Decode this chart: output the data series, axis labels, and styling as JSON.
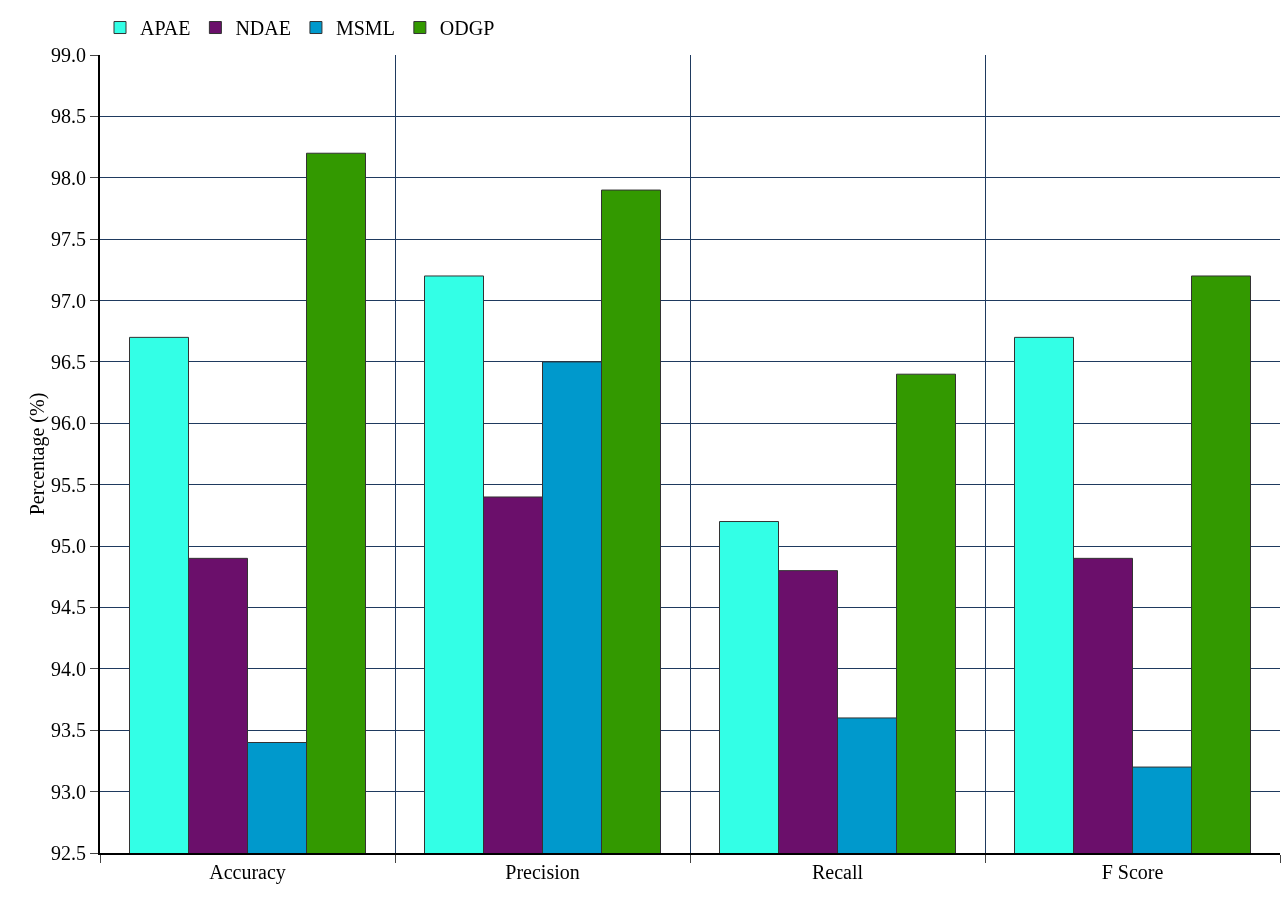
{
  "chart_data": {
    "type": "bar",
    "ylabel": "Percentage (%)",
    "categories": [
      "Accuracy",
      "Precision",
      "Recall",
      "F Score"
    ],
    "series": [
      {
        "name": "APAE",
        "color": "#33ffe6",
        "values": [
          96.7,
          97.2,
          95.2,
          96.7
        ]
      },
      {
        "name": "NDAE",
        "color": "#6b0f6b",
        "values": [
          94.9,
          95.4,
          94.8,
          94.9
        ]
      },
      {
        "name": "MSML",
        "color": "#0099cc",
        "values": [
          93.4,
          96.5,
          93.6,
          93.2
        ]
      },
      {
        "name": "ODGP",
        "color": "#339900",
        "values": [
          98.2,
          97.9,
          96.4,
          97.2
        ]
      }
    ],
    "ylim": [
      92.5,
      99.0
    ],
    "yticks": [
      {
        "value": 92.5,
        "label": "92.5"
      },
      {
        "value": 93,
        "label": "93.0"
      },
      {
        "value": 93.5,
        "label": "93.5"
      },
      {
        "value": 94,
        "label": "94.0"
      },
      {
        "value": 94.5,
        "label": "94.5"
      },
      {
        "value": 95,
        "label": "95.0"
      },
      {
        "value": 95.5,
        "label": "95.5"
      },
      {
        "value": 96,
        "label": "96.0"
      },
      {
        "value": 96.5,
        "label": "96.5"
      },
      {
        "value": 97,
        "label": "97.0"
      },
      {
        "value": 97.5,
        "label": "97.5"
      },
      {
        "value": 98,
        "label": "98.0"
      },
      {
        "value": 98.5,
        "label": "98.5"
      },
      {
        "value": 99,
        "label": "99.0"
      }
    ],
    "grid": true,
    "legend": "top left"
  }
}
